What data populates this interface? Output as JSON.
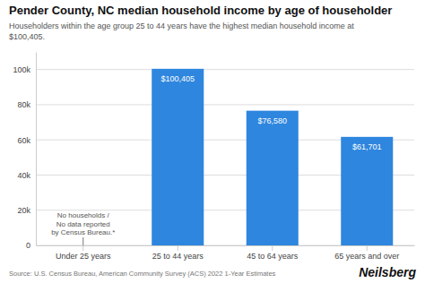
{
  "chart_data": {
    "type": "bar",
    "title": "Pender County, NC median household income by age of householder",
    "subtitle": "Householders within the age group 25 to 44 years have the highest median household income at\n$100,405.",
    "categories": [
      "Under 25 years",
      "25 to 44 years",
      "45 to 64 years",
      "65 years and over"
    ],
    "values": [
      0,
      100405,
      76580,
      61701
    ],
    "value_labels": [
      null,
      "$100,405",
      "$76,580",
      "$61,701"
    ],
    "data_labels": true,
    "annotation": "No households /\nNo data reported\nby Census Bureau.*",
    "color": "#2e86de",
    "ylim": [
      0,
      110000
    ],
    "yticks": [
      0,
      {
        "value": 20000,
        "label": "20k"
      },
      {
        "value": 40000,
        "label": "40k"
      },
      {
        "value": 60000,
        "label": "60k"
      },
      {
        "value": 80000,
        "label": "80k"
      },
      {
        "value": 100000,
        "label": "100k"
      }
    ],
    "grid": true,
    "source": "Source: U.S. Census Bureau, American Community Survey (ACS) 2022 1-Year Estimates",
    "brand": "Neilsberg"
  }
}
